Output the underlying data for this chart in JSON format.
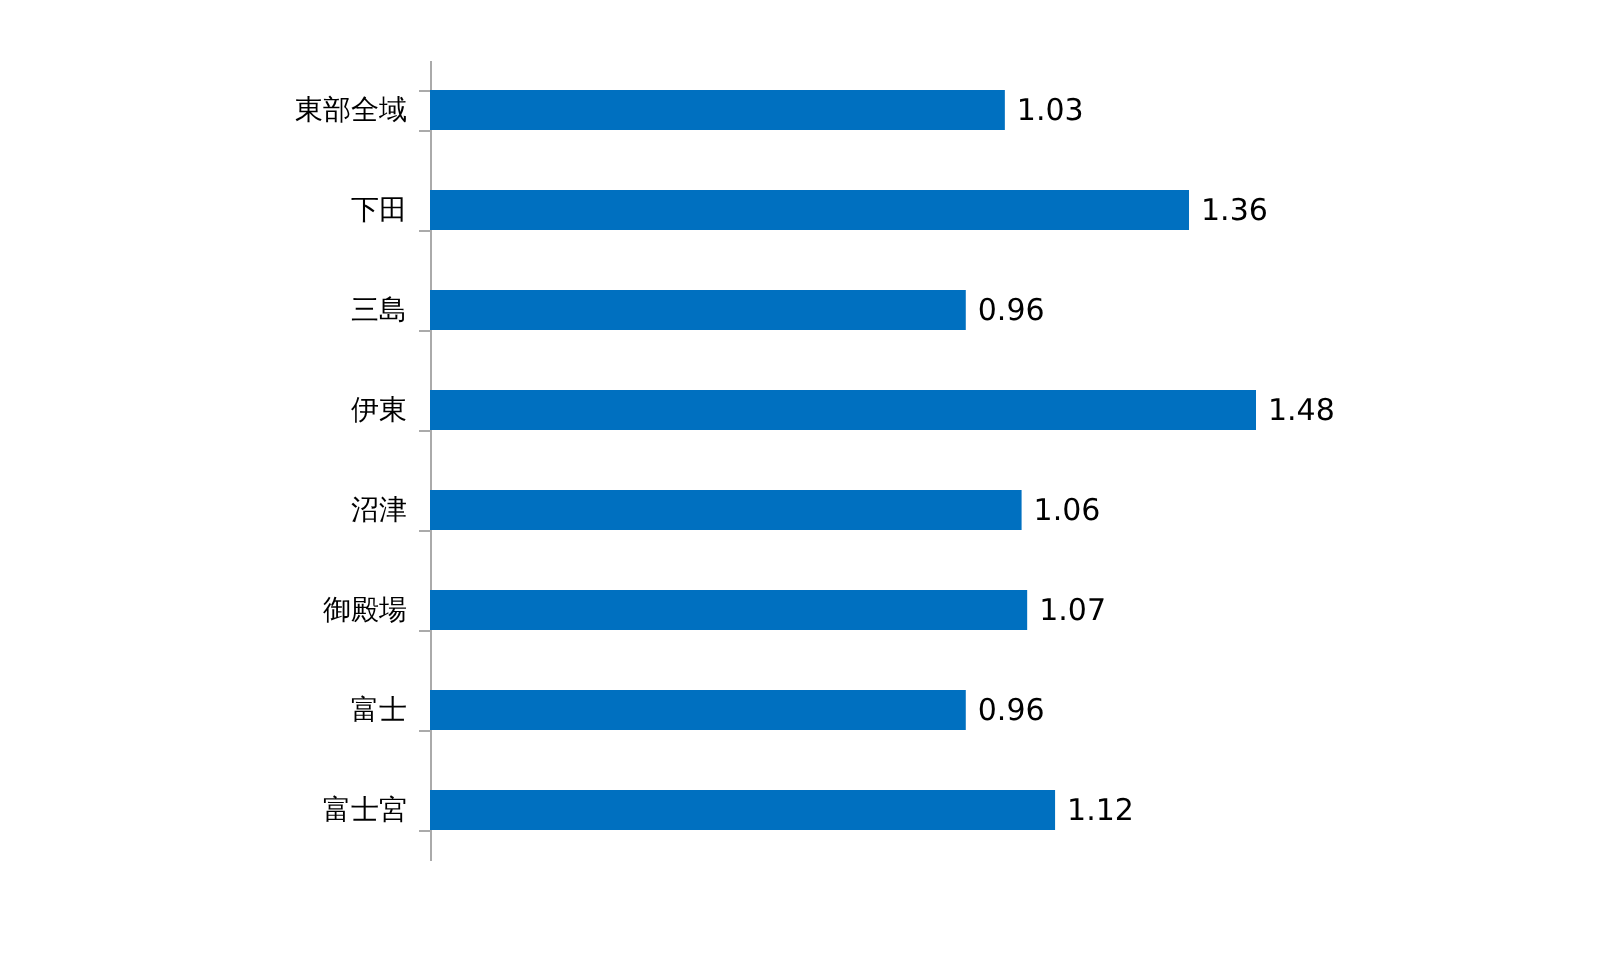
{
  "chart_data": {
    "type": "bar",
    "orientation": "horizontal",
    "categories": [
      "東部全域",
      "下田",
      "三島",
      "伊東",
      "沼津",
      "御殿場",
      "富士",
      "富士宮"
    ],
    "values": [
      1.03,
      1.36,
      0.96,
      1.48,
      1.06,
      1.07,
      0.96,
      1.12
    ],
    "color": "#0070c0",
    "data_labels": true,
    "tick_labels": "y",
    "grid": false
  }
}
